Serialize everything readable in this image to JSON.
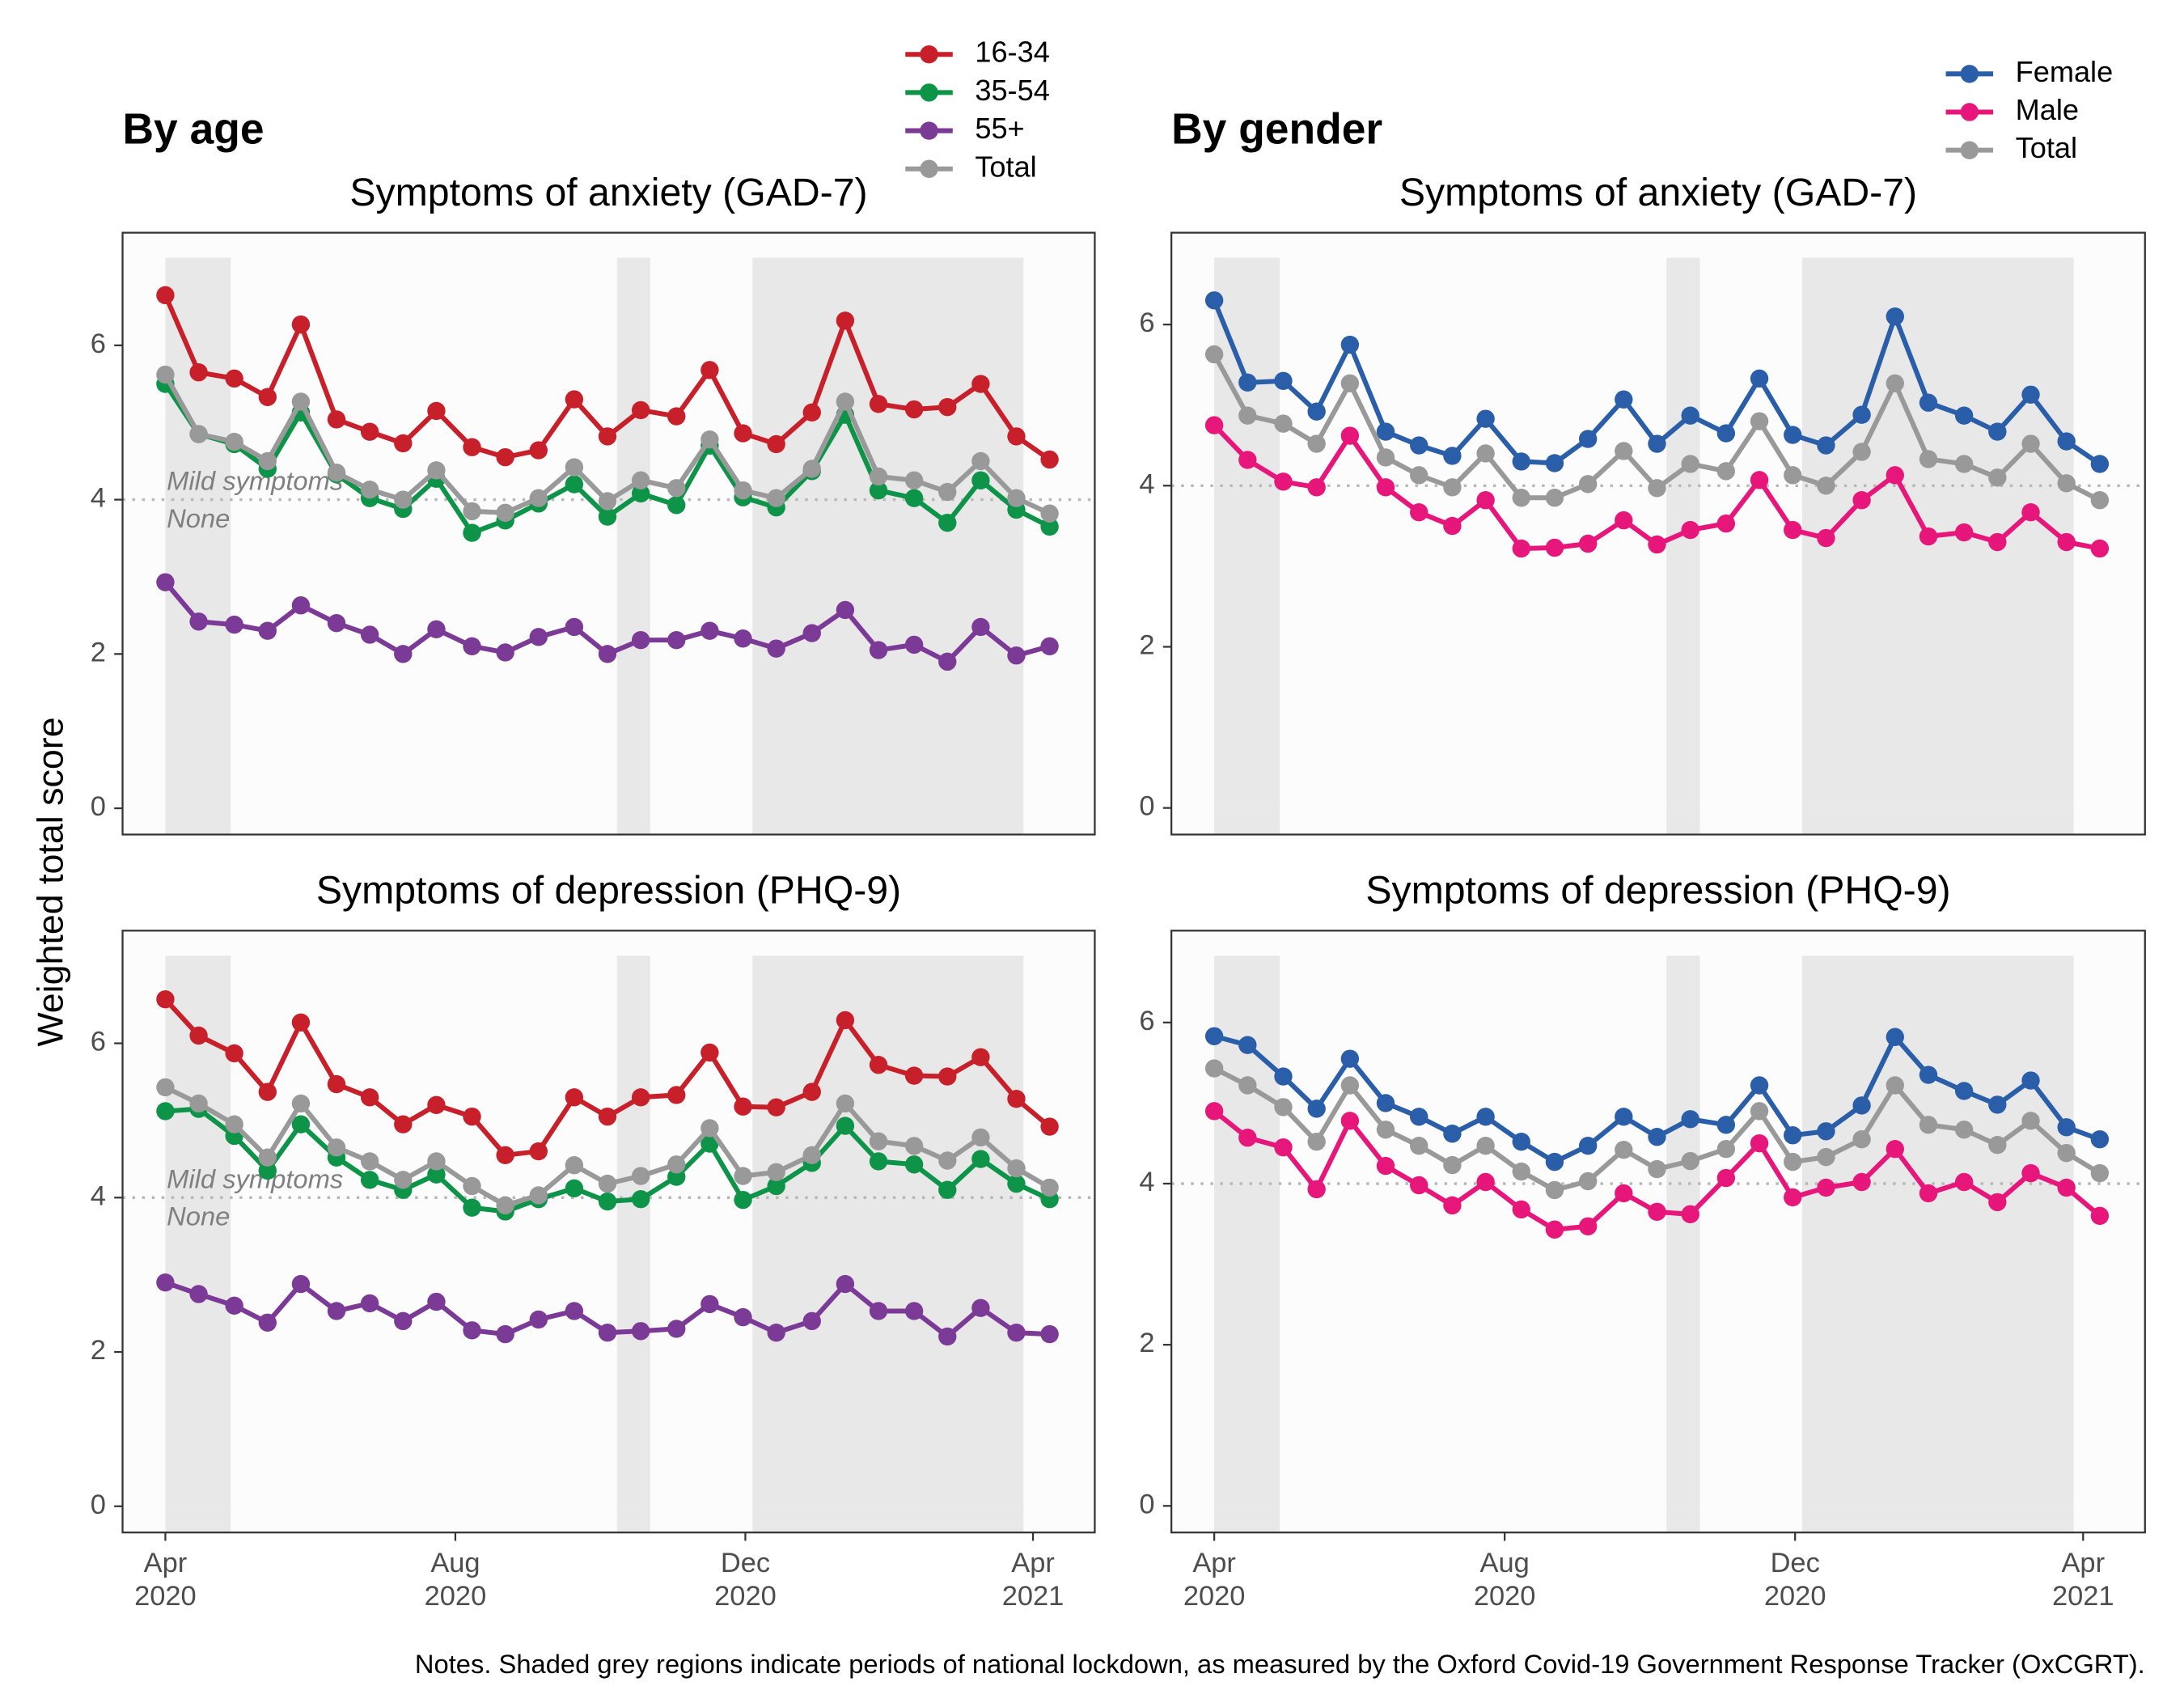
{
  "y_label": "Weighted total score",
  "notes": "Notes. Shaded grey regions indicate periods of national lockdown, as measured by the Oxford Covid-19 Government Response Tracker (OxCGRT).",
  "chart_data": [
    {
      "type": "line",
      "group": "By age",
      "title": "Symptoms of anxiety (GAD-7)",
      "show_legend": true,
      "x": [
        0,
        14,
        29,
        43,
        57,
        72,
        86,
        100,
        114,
        129,
        143,
        157,
        172,
        186,
        200,
        215,
        229,
        243,
        257,
        272,
        286,
        300,
        315,
        329,
        343,
        358,
        372
      ],
      "xlim": [
        -18,
        391
      ],
      "ylim": [
        -0.34,
        7.46
      ],
      "yticks": [
        0,
        2,
        4,
        6
      ],
      "shaded": [
        [
          0,
          27.5
        ],
        [
          190,
          204
        ],
        [
          247,
          361
        ]
      ],
      "threshold": 4,
      "threshold_above": "Mild symptoms",
      "threshold_below": "None",
      "series": [
        {
          "name": "16-34",
          "color": "#c8202a",
          "values": [
            6.65,
            5.65,
            5.57,
            5.33,
            6.27,
            5.04,
            4.88,
            4.73,
            5.15,
            4.68,
            4.55,
            4.64,
            5.3,
            4.82,
            5.16,
            5.08,
            5.68,
            4.86,
            4.72,
            5.13,
            6.32,
            5.24,
            5.17,
            5.2,
            5.5,
            4.82,
            4.52
          ]
        },
        {
          "name": "35-54",
          "color": "#0e9448",
          "values": [
            5.5,
            4.85,
            4.72,
            4.4,
            5.13,
            4.33,
            4.02,
            3.88,
            4.27,
            3.57,
            3.73,
            3.95,
            4.2,
            3.78,
            4.08,
            3.93,
            4.7,
            4.03,
            3.9,
            4.37,
            5.1,
            4.12,
            4.02,
            3.7,
            4.25,
            3.87,
            3.65
          ]
        },
        {
          "name": "55+",
          "color": "#7b3a96",
          "values": [
            2.93,
            2.42,
            2.38,
            2.3,
            2.63,
            2.4,
            2.25,
            2.0,
            2.32,
            2.1,
            2.02,
            2.22,
            2.35,
            2.0,
            2.18,
            2.18,
            2.3,
            2.2,
            2.07,
            2.27,
            2.57,
            2.05,
            2.12,
            1.9,
            2.35,
            1.98,
            2.1
          ]
        },
        {
          "name": "Total",
          "color": "#999999",
          "values": [
            5.62,
            4.85,
            4.75,
            4.5,
            5.27,
            4.35,
            4.13,
            4.0,
            4.38,
            3.85,
            3.83,
            4.02,
            4.42,
            3.98,
            4.25,
            4.15,
            4.78,
            4.12,
            4.02,
            4.4,
            5.27,
            4.3,
            4.25,
            4.1,
            4.5,
            4.02,
            3.82
          ]
        }
      ]
    },
    {
      "type": "line",
      "title": "Symptoms of depression (PHQ-9)",
      "x": [
        0,
        14,
        29,
        43,
        57,
        72,
        86,
        100,
        114,
        129,
        143,
        157,
        172,
        186,
        200,
        215,
        229,
        243,
        257,
        272,
        286,
        300,
        315,
        329,
        343,
        358,
        372
      ],
      "xlim": [
        -18,
        391
      ],
      "ylim": [
        -0.34,
        7.46
      ],
      "yticks": [
        0,
        2,
        4,
        6
      ],
      "xticks": [
        {
          "value": 0,
          "label": "Apr",
          "sublabel": "2020"
        },
        {
          "value": 122,
          "label": "Aug",
          "sublabel": "2020"
        },
        {
          "value": 244,
          "label": "Dec",
          "sublabel": "2020"
        },
        {
          "value": 365,
          "label": "Apr",
          "sublabel": "2021"
        }
      ],
      "shaded": [
        [
          0,
          27.5
        ],
        [
          190,
          204
        ],
        [
          247,
          361
        ]
      ],
      "threshold": 4,
      "threshold_above": "Mild symptoms",
      "threshold_below": "None",
      "series": [
        {
          "name": "16-34",
          "color": "#c8202a",
          "values": [
            6.57,
            6.1,
            5.87,
            5.37,
            6.27,
            5.47,
            5.3,
            4.95,
            5.2,
            5.05,
            4.55,
            4.6,
            5.3,
            5.05,
            5.3,
            5.33,
            5.88,
            5.18,
            5.17,
            5.37,
            6.3,
            5.72,
            5.58,
            5.57,
            5.82,
            5.28,
            4.92
          ]
        },
        {
          "name": "35-54",
          "color": "#0e9448",
          "values": [
            5.12,
            5.15,
            4.8,
            4.35,
            4.95,
            4.52,
            4.23,
            4.1,
            4.3,
            3.87,
            3.82,
            3.98,
            4.12,
            3.95,
            3.98,
            4.27,
            4.7,
            3.97,
            4.15,
            4.45,
            4.93,
            4.47,
            4.43,
            4.1,
            4.5,
            4.18,
            3.98
          ]
        },
        {
          "name": "55+",
          "color": "#7b3a96",
          "values": [
            2.9,
            2.75,
            2.6,
            2.38,
            2.88,
            2.53,
            2.63,
            2.4,
            2.65,
            2.28,
            2.23,
            2.42,
            2.53,
            2.25,
            2.27,
            2.3,
            2.62,
            2.45,
            2.25,
            2.4,
            2.88,
            2.53,
            2.53,
            2.2,
            2.57,
            2.25,
            2.23
          ]
        },
        {
          "name": "Total",
          "color": "#999999",
          "values": [
            5.43,
            5.22,
            4.95,
            4.52,
            5.22,
            4.65,
            4.47,
            4.23,
            4.47,
            4.15,
            3.9,
            4.03,
            4.42,
            4.18,
            4.28,
            4.43,
            4.9,
            4.28,
            4.33,
            4.55,
            5.22,
            4.73,
            4.67,
            4.48,
            4.78,
            4.38,
            4.13
          ]
        }
      ]
    },
    {
      "type": "line",
      "group": "By gender",
      "title": "Symptoms of anxiety (GAD-7)",
      "show_legend": true,
      "x": [
        0,
        14,
        29,
        43,
        57,
        72,
        86,
        100,
        114,
        129,
        143,
        157,
        172,
        186,
        200,
        215,
        229,
        243,
        257,
        272,
        286,
        300,
        315,
        329,
        343,
        358,
        372
      ],
      "xlim": [
        -18,
        391
      ],
      "ylim": [
        -0.33,
        7.14
      ],
      "yticks": [
        0,
        2,
        4,
        6
      ],
      "shaded": [
        [
          0,
          27.5
        ],
        [
          190,
          204
        ],
        [
          247,
          361
        ]
      ],
      "threshold": 4,
      "series": [
        {
          "name": "Female",
          "color": "#2a5ea8",
          "values": [
            6.3,
            5.28,
            5.3,
            4.92,
            5.75,
            4.67,
            4.5,
            4.37,
            4.83,
            4.3,
            4.28,
            4.58,
            5.07,
            4.52,
            4.87,
            4.65,
            5.33,
            4.63,
            4.5,
            4.88,
            6.1,
            5.03,
            4.87,
            4.67,
            5.13,
            4.55,
            4.27
          ]
        },
        {
          "name": "Male",
          "color": "#e6167a",
          "values": [
            4.75,
            4.32,
            4.05,
            3.98,
            4.62,
            3.98,
            3.67,
            3.5,
            3.82,
            3.22,
            3.23,
            3.28,
            3.57,
            3.27,
            3.45,
            3.53,
            4.07,
            3.45,
            3.35,
            3.82,
            4.13,
            3.37,
            3.42,
            3.3,
            3.67,
            3.3,
            3.22
          ]
        },
        {
          "name": "Total",
          "color": "#999999",
          "values": [
            5.63,
            4.87,
            4.77,
            4.52,
            5.27,
            4.35,
            4.13,
            3.98,
            4.4,
            3.85,
            3.85,
            4.02,
            4.43,
            3.97,
            4.27,
            4.18,
            4.8,
            4.13,
            4.0,
            4.42,
            5.27,
            4.33,
            4.27,
            4.1,
            4.52,
            4.03,
            3.82
          ]
        }
      ]
    },
    {
      "type": "line",
      "title": "Symptoms of depression (PHQ-9)",
      "x": [
        0,
        14,
        29,
        43,
        57,
        72,
        86,
        100,
        114,
        129,
        143,
        157,
        172,
        186,
        200,
        215,
        229,
        243,
        257,
        272,
        286,
        300,
        315,
        329,
        343,
        358,
        372
      ],
      "xlim": [
        -18,
        391
      ],
      "ylim": [
        -0.33,
        7.14
      ],
      "yticks": [
        0,
        2,
        4,
        6
      ],
      "xticks": [
        {
          "value": 0,
          "label": "Apr",
          "sublabel": "2020"
        },
        {
          "value": 122,
          "label": "Aug",
          "sublabel": "2020"
        },
        {
          "value": 244,
          "label": "Dec",
          "sublabel": "2020"
        },
        {
          "value": 365,
          "label": "Apr",
          "sublabel": "2021"
        }
      ],
      "shaded": [
        [
          0,
          27.5
        ],
        [
          190,
          204
        ],
        [
          247,
          361
        ]
      ],
      "threshold": 4,
      "series": [
        {
          "name": "Female",
          "color": "#2a5ea8",
          "values": [
            5.83,
            5.72,
            5.33,
            4.93,
            5.55,
            5.0,
            4.83,
            4.62,
            4.83,
            4.52,
            4.27,
            4.47,
            4.83,
            4.58,
            4.8,
            4.73,
            5.22,
            4.6,
            4.65,
            4.97,
            5.82,
            5.35,
            5.15,
            4.98,
            5.28,
            4.7,
            4.55
          ]
        },
        {
          "name": "Male",
          "color": "#e6167a",
          "values": [
            4.9,
            4.57,
            4.45,
            3.93,
            4.78,
            4.22,
            3.98,
            3.73,
            4.02,
            3.68,
            3.43,
            3.47,
            3.88,
            3.65,
            3.62,
            4.07,
            4.5,
            3.83,
            3.95,
            4.02,
            4.43,
            3.88,
            4.02,
            3.77,
            4.13,
            3.95,
            3.6
          ]
        },
        {
          "name": "Total",
          "color": "#999999",
          "values": [
            5.43,
            5.22,
            4.95,
            4.52,
            5.22,
            4.67,
            4.47,
            4.23,
            4.47,
            4.15,
            3.92,
            4.03,
            4.42,
            4.18,
            4.28,
            4.43,
            4.9,
            4.27,
            4.33,
            4.55,
            5.22,
            4.73,
            4.67,
            4.48,
            4.78,
            4.38,
            4.13
          ]
        }
      ]
    }
  ]
}
